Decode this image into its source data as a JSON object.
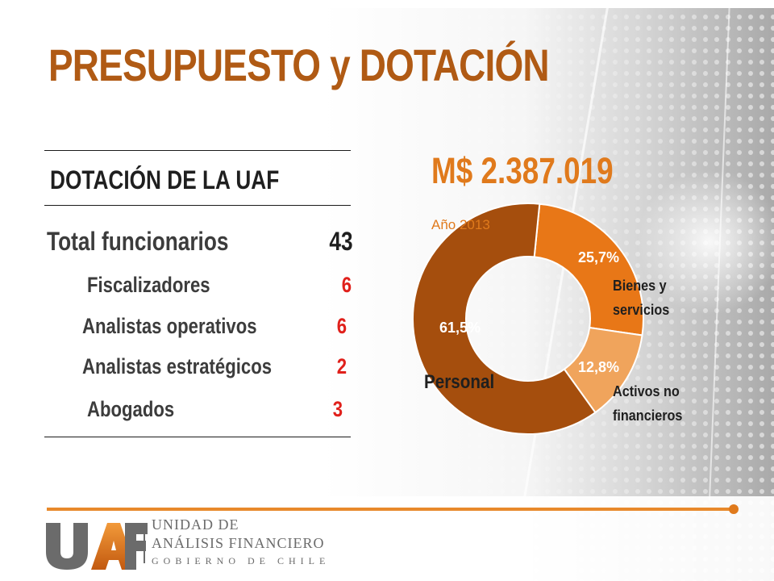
{
  "title": "PRESUPUESTO y DOTACIÓN",
  "staffing": {
    "heading": "DOTACIÓN DE LA UAF",
    "total": {
      "label": "Total funcionarios",
      "value": "43"
    },
    "roles": [
      {
        "label": "Fiscalizadores",
        "value": "6"
      },
      {
        "label": "Analistas operativos",
        "value": "6"
      },
      {
        "label": "Analistas estratégicos",
        "value": "2"
      },
      {
        "label": "Abogados",
        "value": "3"
      }
    ]
  },
  "budget": {
    "amount": "M$ 2.387.019",
    "year": "Año 2013"
  },
  "chart_data": {
    "type": "pie",
    "donut": true,
    "title": "M$ 2.387.019",
    "subtitle": "Año 2013",
    "categories": [
      "Personal",
      "Bienes y servicios",
      "Activos no financieros"
    ],
    "values": [
      61.5,
      25.7,
      12.8
    ],
    "value_labels": [
      "61,5%",
      "25,7%",
      "12,8%"
    ],
    "category_lines": [
      [
        "Personal"
      ],
      [
        "Bienes y",
        "servicios"
      ],
      [
        "Activos no",
        "financieros"
      ]
    ],
    "colors": [
      "#a54e0d",
      "#e87717",
      "#f0a45c"
    ]
  },
  "footer": {
    "logo_text": "UAF",
    "org_line1": "UNIDAD DE",
    "org_line2": "ANÁLISIS FINANCIERO",
    "org_line3": "GOBIERNO DE CHILE",
    "accent_color": "#e8892b"
  },
  "colors": {
    "title": "#b05a14",
    "accent": "#e07a1c",
    "value_red": "#e0201b"
  }
}
